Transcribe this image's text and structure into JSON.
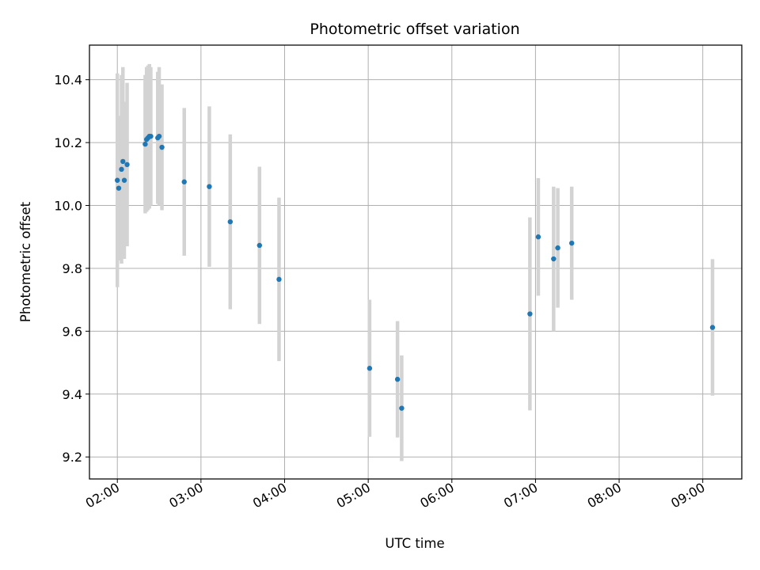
{
  "chart_data": {
    "type": "scatter",
    "title": "Photometric offset variation",
    "xlabel": "UTC time",
    "ylabel": "Photometric offset",
    "x_ticks": [
      "02:00",
      "03:00",
      "04:00",
      "05:00",
      "06:00",
      "07:00",
      "08:00",
      "09:00"
    ],
    "y_ticks": [
      "9.2",
      "9.4",
      "9.6",
      "9.8",
      "10.0",
      "10.2",
      "10.4"
    ],
    "xlim": [
      "01:40",
      "09:28"
    ],
    "ylim": [
      9.13,
      10.51
    ],
    "grid": true,
    "legend": "none",
    "colors": {
      "point": "#1f77b4",
      "errorbar": "#d3d3d3",
      "grid": "#b0b0b0"
    },
    "series": [
      {
        "x": [
          "02:00",
          "02:01",
          "02:03",
          "02:04",
          "02:05",
          "02:07",
          "02:20",
          "02:21",
          "02:22",
          "02:23",
          "02:24",
          "02:29",
          "02:30",
          "02:32",
          "02:48",
          "03:06",
          "03:21",
          "03:42",
          "03:56",
          "05:01",
          "05:21",
          "05:24",
          "06:56",
          "07:02",
          "07:13",
          "07:16",
          "07:26",
          "09:07"
        ],
        "y": [
          10.08,
          10.055,
          10.115,
          10.14,
          10.08,
          10.13,
          10.195,
          10.21,
          10.215,
          10.22,
          10.22,
          10.215,
          10.22,
          10.185,
          10.075,
          10.06,
          9.948,
          9.873,
          9.765,
          9.482,
          9.447,
          9.355,
          9.655,
          9.9,
          9.83,
          9.865,
          9.88,
          9.612
        ],
        "error": [
          0.34,
          0.23,
          0.3,
          0.3,
          0.25,
          0.26,
          0.22,
          0.23,
          0.23,
          0.23,
          0.22,
          0.21,
          0.22,
          0.2,
          0.235,
          0.255,
          0.278,
          0.25,
          0.26,
          0.218,
          0.185,
          0.168,
          0.307,
          0.187,
          0.23,
          0.19,
          0.18,
          0.217
        ]
      }
    ]
  }
}
